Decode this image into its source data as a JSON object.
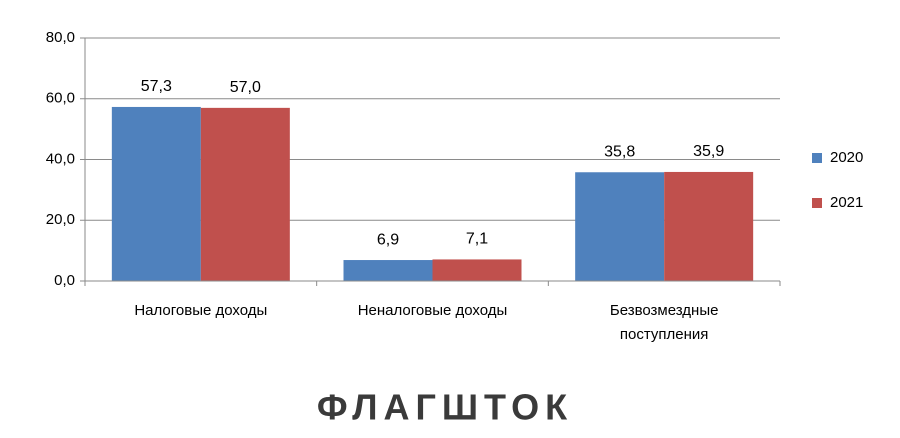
{
  "chart_data": {
    "type": "bar",
    "categories": [
      "Налоговые доходы",
      "Неналоговые доходы",
      "Безвозмездные поступления"
    ],
    "series": [
      {
        "name": "2020",
        "color": "#4f81bd",
        "values": [
          57.3,
          6.9,
          35.8
        ],
        "value_labels": [
          "57,3",
          "6,9",
          "35,8"
        ]
      },
      {
        "name": "2021",
        "color": "#c0504d",
        "values": [
          57.0,
          7.1,
          35.9
        ],
        "value_labels": [
          "57,0",
          "7,1",
          "35,9"
        ]
      }
    ],
    "ylim": [
      0,
      80
    ],
    "yticks": [
      {
        "value": 0,
        "label": "0,0"
      },
      {
        "value": 20,
        "label": "20,0"
      },
      {
        "value": 40,
        "label": "40,0"
      },
      {
        "value": 60,
        "label": "60,0"
      },
      {
        "value": 80,
        "label": "80,0"
      }
    ],
    "grid": true,
    "legend": "right",
    "watermark": "ФЛАГШТОК"
  }
}
